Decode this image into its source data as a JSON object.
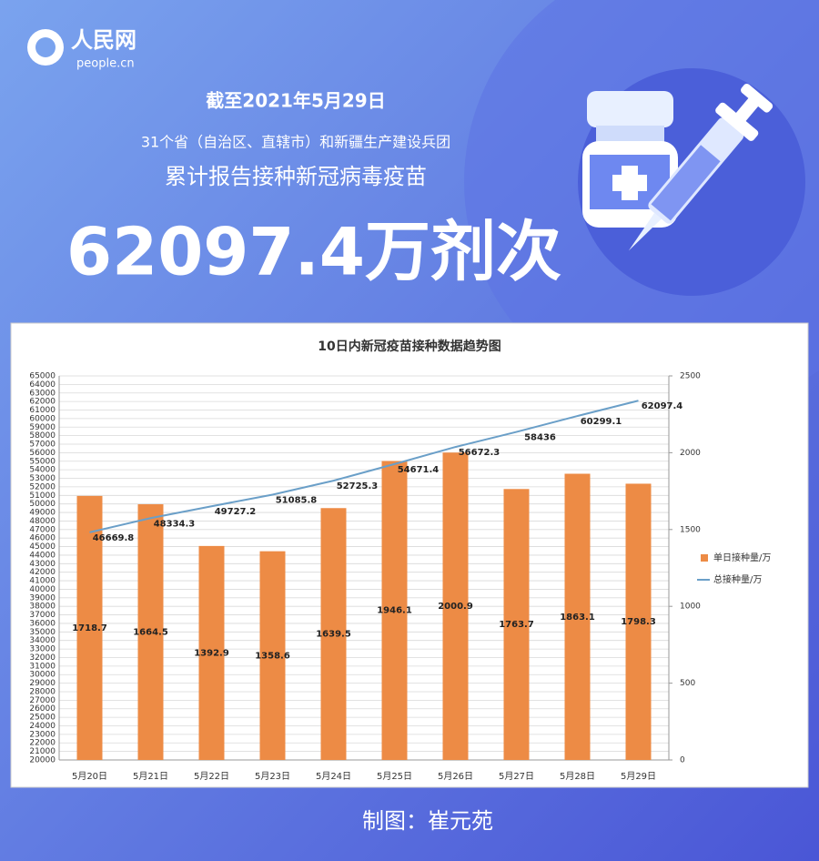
{
  "header": {
    "logo_text": "人民网",
    "logo_sub": "people.cn",
    "date_line": "截至2021年5月29日",
    "subtitle": "31个省（自治区、直辖市）和新疆生产建设兵团",
    "headline": "累计报告接种新冠病毒疫苗",
    "total": "62097.4万剂次"
  },
  "chart_data": {
    "type": "combo",
    "title": "10日内新冠疫苗接种数据趋势图",
    "categories": [
      "5月20日",
      "5月21日",
      "5月22日",
      "5月23日",
      "5月24日",
      "5月25日",
      "5月26日",
      "5月27日",
      "5月28日",
      "5月29日"
    ],
    "series": [
      {
        "name": "单日接种量/万",
        "type": "bar",
        "axis": "y2",
        "color": "#ed8b45",
        "values": [
          1718.7,
          1664.5,
          1392.9,
          1358.6,
          1639.5,
          1946.1,
          2000.9,
          1763.7,
          1863.1,
          1798.3
        ]
      },
      {
        "name": "总接种量/万",
        "type": "line",
        "axis": "y",
        "color": "#6a9fc8",
        "values": [
          46669.8,
          48334.3,
          49727.2,
          51085.8,
          52725.3,
          54671.4,
          56672.3,
          58436,
          60299.1,
          62097.4
        ]
      }
    ],
    "ylim": [
      20000,
      65000
    ],
    "yticks": [
      20000,
      21000,
      22000,
      23000,
      24000,
      25000,
      26000,
      27000,
      28000,
      29000,
      30000,
      31000,
      32000,
      33000,
      34000,
      35000,
      36000,
      37000,
      38000,
      39000,
      40000,
      41000,
      42000,
      43000,
      44000,
      45000,
      46000,
      47000,
      48000,
      49000,
      50000,
      51000,
      52000,
      53000,
      54000,
      55000,
      56000,
      57000,
      58000,
      59000,
      60000,
      61000,
      62000,
      63000,
      64000,
      65000
    ],
    "y2lim": [
      0,
      2500
    ],
    "y2ticks": [
      0,
      500,
      1000,
      1500,
      2000,
      2500
    ],
    "grid": true,
    "legend": "right"
  },
  "credit": "制图：崔元苑"
}
